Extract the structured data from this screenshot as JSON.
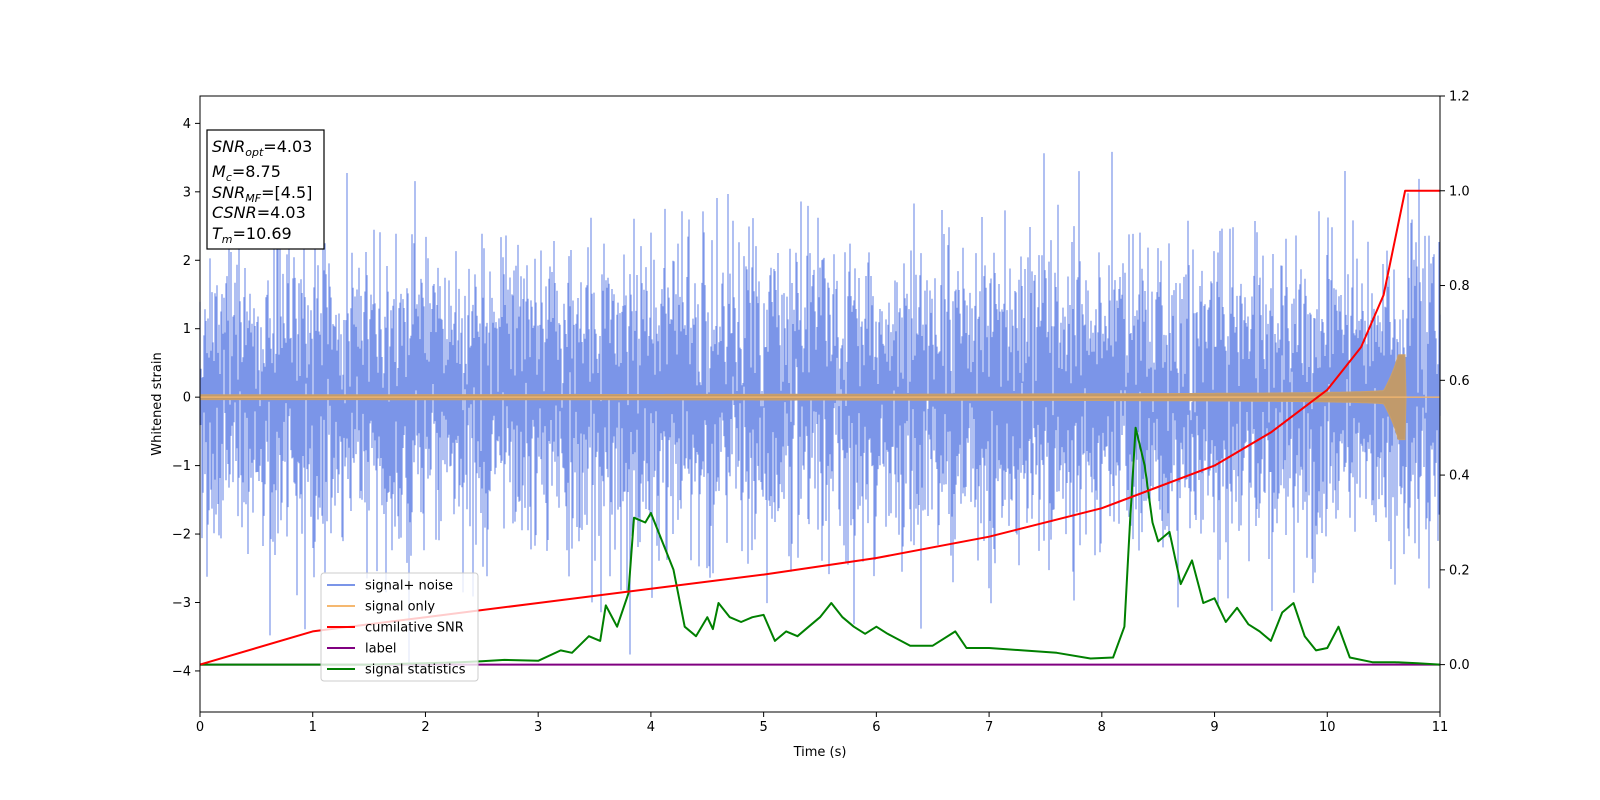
{
  "chart_data": {
    "type": "line",
    "xlabel": "Time (s)",
    "ylabel": "Whitened strain",
    "xlim": [
      0,
      11
    ],
    "ylim": [
      -4.6,
      4.4
    ],
    "y2lim": [
      -0.1,
      1.2
    ],
    "x_ticks": [
      "0",
      "1",
      "2",
      "3",
      "4",
      "5",
      "6",
      "7",
      "8",
      "9",
      "10",
      "11"
    ],
    "y_ticks": [
      "4",
      "3",
      "2",
      "1",
      "0",
      "−1",
      "−2",
      "−3",
      "−4"
    ],
    "y2_ticks": [
      "1.2",
      "1.0",
      "0.8",
      "0.6",
      "0.4",
      "0.2",
      "0.0"
    ],
    "grid": false,
    "legend_position": "lower-left",
    "annotation": {
      "snr_opt": {
        "base": "SNR",
        "sub": "opt",
        "value": "=4.03"
      },
      "mc": {
        "base": "M",
        "sub": "c",
        "value": "=8.75"
      },
      "snr_mf": {
        "base": "SNR",
        "sub": "MF",
        "value": "=[4.5]"
      },
      "csnr": {
        "base": "CSNR",
        "sub": "",
        "value": "=4.03"
      },
      "tm": {
        "base": "T",
        "sub": "m",
        "value": "=10.69"
      }
    },
    "series": [
      {
        "name": "signal+ noise",
        "color": "#7b95e8",
        "axis": "left",
        "description_values": {
          "noise_std": 1.0,
          "approx_min": -4.2,
          "approx_max": 4.0
        }
      },
      {
        "name": "signal only",
        "color": "#f5b870",
        "axis": "left",
        "chirp": {
          "start": 0.0,
          "merger": 10.69,
          "max_amplitude": 0.62
        }
      },
      {
        "name": "cumilative SNR",
        "color": "#ff0000",
        "axis": "right",
        "x": [
          0,
          1,
          2,
          3,
          4,
          5,
          6,
          7,
          8,
          9,
          9.5,
          10,
          10.3,
          10.5,
          10.69,
          11
        ],
        "values": [
          0.0,
          0.07,
          0.1,
          0.13,
          0.16,
          0.19,
          0.225,
          0.27,
          0.33,
          0.42,
          0.49,
          0.58,
          0.67,
          0.78,
          1.0,
          1.0
        ]
      },
      {
        "name": "label",
        "color": "#800080",
        "axis": "right",
        "x": [
          0,
          11
        ],
        "values": [
          0.0,
          0.0
        ]
      },
      {
        "name": "signal statistics",
        "color": "#008000",
        "axis": "right",
        "x": [
          0,
          0.5,
          1,
          1.5,
          2,
          2.3,
          2.5,
          2.7,
          3,
          3.2,
          3.3,
          3.45,
          3.55,
          3.6,
          3.7,
          3.8,
          3.85,
          3.95,
          4.0,
          4.1,
          4.2,
          4.3,
          4.4,
          4.5,
          4.55,
          4.6,
          4.7,
          4.8,
          4.9,
          5.0,
          5.1,
          5.2,
          5.3,
          5.4,
          5.5,
          5.6,
          5.7,
          5.8,
          5.9,
          6.0,
          6.1,
          6.3,
          6.5,
          6.7,
          6.8,
          7.0,
          7.3,
          7.6,
          7.9,
          8.1,
          8.2,
          8.25,
          8.3,
          8.38,
          8.45,
          8.5,
          8.6,
          8.7,
          8.8,
          8.9,
          9.0,
          9.1,
          9.2,
          9.3,
          9.4,
          9.5,
          9.6,
          9.7,
          9.8,
          9.9,
          10.0,
          10.1,
          10.2,
          10.4,
          10.6,
          10.8,
          11.0
        ],
        "values": [
          0,
          0.0,
          0.0,
          0.0,
          0.003,
          0.005,
          0.007,
          0.01,
          0.008,
          0.03,
          0.025,
          0.06,
          0.05,
          0.125,
          0.08,
          0.15,
          0.31,
          0.3,
          0.32,
          0.26,
          0.2,
          0.08,
          0.06,
          0.1,
          0.075,
          0.13,
          0.1,
          0.09,
          0.1,
          0.105,
          0.05,
          0.07,
          0.06,
          0.08,
          0.1,
          0.13,
          0.1,
          0.08,
          0.065,
          0.08,
          0.065,
          0.04,
          0.04,
          0.07,
          0.035,
          0.035,
          0.03,
          0.025,
          0.013,
          0.015,
          0.08,
          0.3,
          0.5,
          0.42,
          0.3,
          0.26,
          0.28,
          0.17,
          0.22,
          0.13,
          0.14,
          0.09,
          0.12,
          0.085,
          0.07,
          0.05,
          0.11,
          0.13,
          0.06,
          0.03,
          0.035,
          0.08,
          0.015,
          0.005,
          0.005,
          0.003,
          0.0
        ]
      }
    ]
  }
}
